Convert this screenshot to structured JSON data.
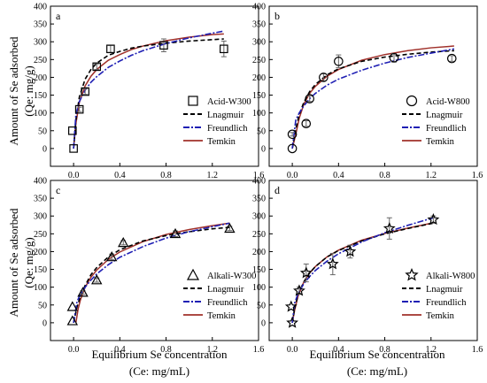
{
  "figure": {
    "ylabel_line1": "Amount of Se  adsorbed",
    "ylabel_line2": "(Qe: mg/g)",
    "xlabel_line1": "Equilibrium Se concentration",
    "xlabel_line2": "(Ce: mg/mL)"
  },
  "colors": {
    "langmuir": "#000000",
    "freundlich": "#1f1fb4",
    "temkin": "#a0302a",
    "marker": "#000000",
    "errorbar": "#666666"
  },
  "chart_data": [
    {
      "type": "scatter",
      "panel_label": "a",
      "xlim": [
        -0.2,
        1.6
      ],
      "ylim": [
        -50,
        400
      ],
      "xticks": [
        0.0,
        0.4,
        0.8,
        1.2,
        1.6
      ],
      "yticks": [
        0,
        50,
        100,
        150,
        200,
        250,
        300,
        350,
        400
      ],
      "xtick_labels": [
        "0.0",
        "0.4",
        "0.8",
        "1.2",
        "1.6"
      ],
      "ytick_labels": [
        "0",
        "50",
        "100",
        "150",
        "200",
        "250",
        "300",
        "350",
        "400"
      ],
      "legend": {
        "position": "bottom-right",
        "marker_label": "Acid-W300",
        "langmuir_label": "Lnagmuir",
        "freundlich_label": "Freundlich",
        "temkin_label": "Temkin"
      },
      "marker": "square",
      "points": [
        {
          "x": 0.0,
          "y": 0,
          "err": 0
        },
        {
          "x": -0.01,
          "y": 50,
          "err": 0
        },
        {
          "x": 0.05,
          "y": 110,
          "err": 6
        },
        {
          "x": 0.1,
          "y": 160,
          "err": 8
        },
        {
          "x": 0.2,
          "y": 230,
          "err": 8
        },
        {
          "x": 0.32,
          "y": 280,
          "err": 10
        },
        {
          "x": 0.78,
          "y": 290,
          "err": 18
        },
        {
          "x": 1.3,
          "y": 280,
          "err": 22
        }
      ],
      "curves": {
        "langmuir": {
          "x": [
            0.0,
            0.02,
            0.05,
            0.1,
            0.15,
            0.2,
            0.3,
            0.4,
            0.5,
            0.6,
            0.8,
            1.0,
            1.2,
            1.3
          ],
          "y": [
            0,
            80,
            145,
            195,
            222,
            240,
            262,
            273,
            282,
            288,
            296,
            302,
            306,
            308
          ]
        },
        "freundlich": {
          "x": [
            0.0,
            0.02,
            0.05,
            0.1,
            0.15,
            0.2,
            0.3,
            0.4,
            0.5,
            0.6,
            0.8,
            1.0,
            1.2,
            1.3
          ],
          "y": [
            0,
            95,
            132,
            164,
            186,
            202,
            228,
            246,
            262,
            275,
            295,
            311,
            324,
            330
          ]
        },
        "temkin": {
          "x": [
            0.0,
            0.02,
            0.05,
            0.1,
            0.15,
            0.2,
            0.3,
            0.4,
            0.5,
            0.6,
            0.8,
            1.0,
            1.2,
            1.3
          ],
          "y": [
            0,
            70,
            130,
            176,
            203,
            222,
            248,
            264,
            278,
            288,
            303,
            313,
            320,
            322
          ]
        }
      }
    },
    {
      "type": "scatter",
      "panel_label": "b",
      "xlim": [
        -0.2,
        1.6
      ],
      "ylim": [
        -50,
        400
      ],
      "xticks": [
        0.0,
        0.4,
        0.8,
        1.2,
        1.6
      ],
      "yticks": [
        0,
        50,
        100,
        150,
        200,
        250,
        300,
        350,
        400
      ],
      "xtick_labels": [
        "0.0",
        "0.4",
        "0.8",
        "1.2",
        "1.6"
      ],
      "ytick_labels": [
        "0",
        "50",
        "100",
        "150",
        "200",
        "250",
        "300",
        "350",
        "400"
      ],
      "legend": {
        "position": "bottom-right",
        "marker_label": "Acid-W800",
        "langmuir_label": "Lnagmuir",
        "freundlich_label": "Freundlich",
        "temkin_label": "Temkin"
      },
      "marker": "circle",
      "points": [
        {
          "x": 0.0,
          "y": 0,
          "err": 0
        },
        {
          "x": 0.0,
          "y": 40,
          "err": 5
        },
        {
          "x": 0.12,
          "y": 70,
          "err": 8
        },
        {
          "x": 0.15,
          "y": 140,
          "err": 8
        },
        {
          "x": 0.27,
          "y": 200,
          "err": 10
        },
        {
          "x": 0.4,
          "y": 245,
          "err": 18
        },
        {
          "x": 0.88,
          "y": 255,
          "err": 12
        },
        {
          "x": 1.38,
          "y": 253,
          "err": 8
        }
      ],
      "curves": {
        "langmuir": {
          "x": [
            0.0,
            0.03,
            0.06,
            0.1,
            0.15,
            0.2,
            0.3,
            0.4,
            0.6,
            0.8,
            1.0,
            1.2,
            1.4
          ],
          "y": [
            0,
            55,
            95,
            130,
            160,
            180,
            207,
            224,
            245,
            257,
            265,
            271,
            275
          ]
        },
        "freundlich": {
          "x": [
            0.0,
            0.03,
            0.06,
            0.1,
            0.15,
            0.2,
            0.3,
            0.4,
            0.6,
            0.8,
            1.0,
            1.2,
            1.4
          ],
          "y": [
            0,
            80,
            100,
            120,
            140,
            155,
            178,
            195,
            220,
            240,
            256,
            268,
            280
          ]
        },
        "temkin": {
          "x": [
            0.0,
            0.03,
            0.06,
            0.1,
            0.15,
            0.2,
            0.3,
            0.4,
            0.6,
            0.8,
            1.0,
            1.2,
            1.4
          ],
          "y": [
            0,
            40,
            85,
            125,
            155,
            175,
            203,
            222,
            248,
            264,
            275,
            283,
            288
          ]
        }
      }
    },
    {
      "type": "scatter",
      "panel_label": "c",
      "xlim": [
        -0.2,
        1.6
      ],
      "ylim": [
        -50,
        400
      ],
      "xticks": [
        0.0,
        0.4,
        0.8,
        1.2,
        1.6
      ],
      "yticks": [
        0,
        50,
        100,
        150,
        200,
        250,
        300,
        350,
        400
      ],
      "xtick_labels": [
        "0.0",
        "0.4",
        "0.8",
        "1.2",
        "1.6"
      ],
      "ytick_labels": [
        "0",
        "50",
        "100",
        "150",
        "200",
        "250",
        "300",
        "350",
        "400"
      ],
      "legend": {
        "position": "bottom-right",
        "marker_label": "Alkali-W300",
        "langmuir_label": "Lnagmuir",
        "freundlich_label": "Freundlich",
        "temkin_label": "Temkin"
      },
      "marker": "triangle",
      "points": [
        {
          "x": -0.01,
          "y": 5,
          "err": 0
        },
        {
          "x": -0.01,
          "y": 45,
          "err": 0
        },
        {
          "x": 0.08,
          "y": 85,
          "err": 5
        },
        {
          "x": 0.2,
          "y": 120,
          "err": 6
        },
        {
          "x": 0.33,
          "y": 185,
          "err": 8
        },
        {
          "x": 0.43,
          "y": 225,
          "err": 6
        },
        {
          "x": 0.88,
          "y": 250,
          "err": 8
        },
        {
          "x": 1.35,
          "y": 265,
          "err": 6
        }
      ],
      "curves": {
        "langmuir": {
          "x": [
            0.0,
            0.03,
            0.06,
            0.1,
            0.15,
            0.2,
            0.3,
            0.4,
            0.6,
            0.8,
            1.0,
            1.2,
            1.35
          ],
          "y": [
            0,
            45,
            75,
            105,
            135,
            155,
            185,
            205,
            230,
            245,
            256,
            264,
            268
          ]
        },
        "freundlich": {
          "x": [
            0.0,
            0.03,
            0.06,
            0.1,
            0.15,
            0.2,
            0.3,
            0.4,
            0.6,
            0.8,
            1.0,
            1.2,
            1.35
          ],
          "y": [
            0,
            60,
            80,
            100,
            120,
            137,
            163,
            184,
            214,
            238,
            256,
            270,
            280
          ]
        },
        "temkin": {
          "x": [
            0.02,
            0.04,
            0.06,
            0.1,
            0.15,
            0.2,
            0.3,
            0.4,
            0.6,
            0.8,
            1.0,
            1.2,
            1.35
          ],
          "y": [
            0,
            40,
            65,
            100,
            128,
            148,
            178,
            199,
            228,
            248,
            262,
            273,
            280
          ]
        }
      }
    },
    {
      "type": "scatter",
      "panel_label": "d",
      "xlim": [
        -0.2,
        1.6
      ],
      "ylim": [
        -50,
        400
      ],
      "xticks": [
        0.0,
        0.4,
        0.8,
        1.2,
        1.6
      ],
      "yticks": [
        0,
        50,
        100,
        150,
        200,
        250,
        300,
        350,
        400
      ],
      "xtick_labels": [
        "0.0",
        "0.4",
        "0.8",
        "1.2",
        "1.6"
      ],
      "ytick_labels": [
        "0",
        "50",
        "100",
        "150",
        "200",
        "250",
        "300",
        "350",
        "400"
      ],
      "legend": {
        "position": "bottom-right",
        "marker_label": "Alkali-W800",
        "langmuir_label": "Lnagmuir",
        "freundlich_label": "Freundlich",
        "temkin_label": "Temkin"
      },
      "marker": "star",
      "points": [
        {
          "x": 0.0,
          "y": 0,
          "err": 0
        },
        {
          "x": -0.01,
          "y": 45,
          "err": 0
        },
        {
          "x": 0.06,
          "y": 90,
          "err": 10
        },
        {
          "x": 0.12,
          "y": 140,
          "err": 25
        },
        {
          "x": 0.35,
          "y": 165,
          "err": 30
        },
        {
          "x": 0.5,
          "y": 200,
          "err": 18
        },
        {
          "x": 0.84,
          "y": 265,
          "err": 30
        },
        {
          "x": 1.22,
          "y": 290,
          "err": 10
        }
      ],
      "curves": {
        "langmuir": {
          "x": [
            0.0,
            0.02,
            0.05,
            0.1,
            0.15,
            0.2,
            0.3,
            0.4,
            0.6,
            0.8,
            1.0,
            1.22
          ],
          "y": [
            0,
            40,
            80,
            115,
            140,
            158,
            185,
            203,
            230,
            250,
            265,
            280
          ]
        },
        "freundlich": {
          "x": [
            0.0,
            0.02,
            0.05,
            0.1,
            0.15,
            0.2,
            0.3,
            0.4,
            0.6,
            0.8,
            1.0,
            1.22
          ],
          "y": [
            0,
            55,
            82,
            110,
            130,
            147,
            173,
            194,
            227,
            253,
            274,
            295
          ]
        },
        "temkin": {
          "x": [
            0.0,
            0.02,
            0.05,
            0.1,
            0.15,
            0.2,
            0.3,
            0.4,
            0.6,
            0.8,
            1.0,
            1.22
          ],
          "y": [
            0,
            35,
            75,
            115,
            140,
            158,
            185,
            204,
            232,
            251,
            266,
            281
          ]
        }
      }
    }
  ]
}
